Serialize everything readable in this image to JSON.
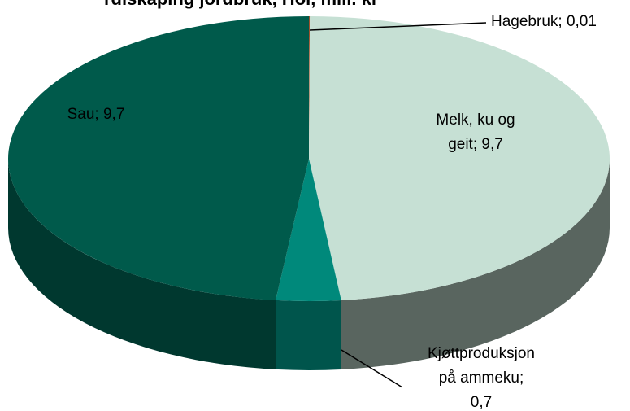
{
  "chart_data": {
    "type": "pie3d",
    "title": "rdiskaping jordbruk, Hol, mill. kr",
    "values": [
      0.01,
      9.7,
      0.7,
      9.7
    ],
    "value_labels": [
      [
        "Hagebruk;  0,01"
      ],
      [
        "Melk, ku og",
        "geit;  9,7"
      ],
      [
        "Kjøttproduksjon",
        "på ammeku;",
        "0,7"
      ],
      [
        "Sau;  9,7"
      ]
    ],
    "colors": [
      "#a0522d",
      "#c6e0d4",
      "#00897b",
      "#005a4b"
    ],
    "start_angle": 0,
    "direction": "clockwise"
  }
}
